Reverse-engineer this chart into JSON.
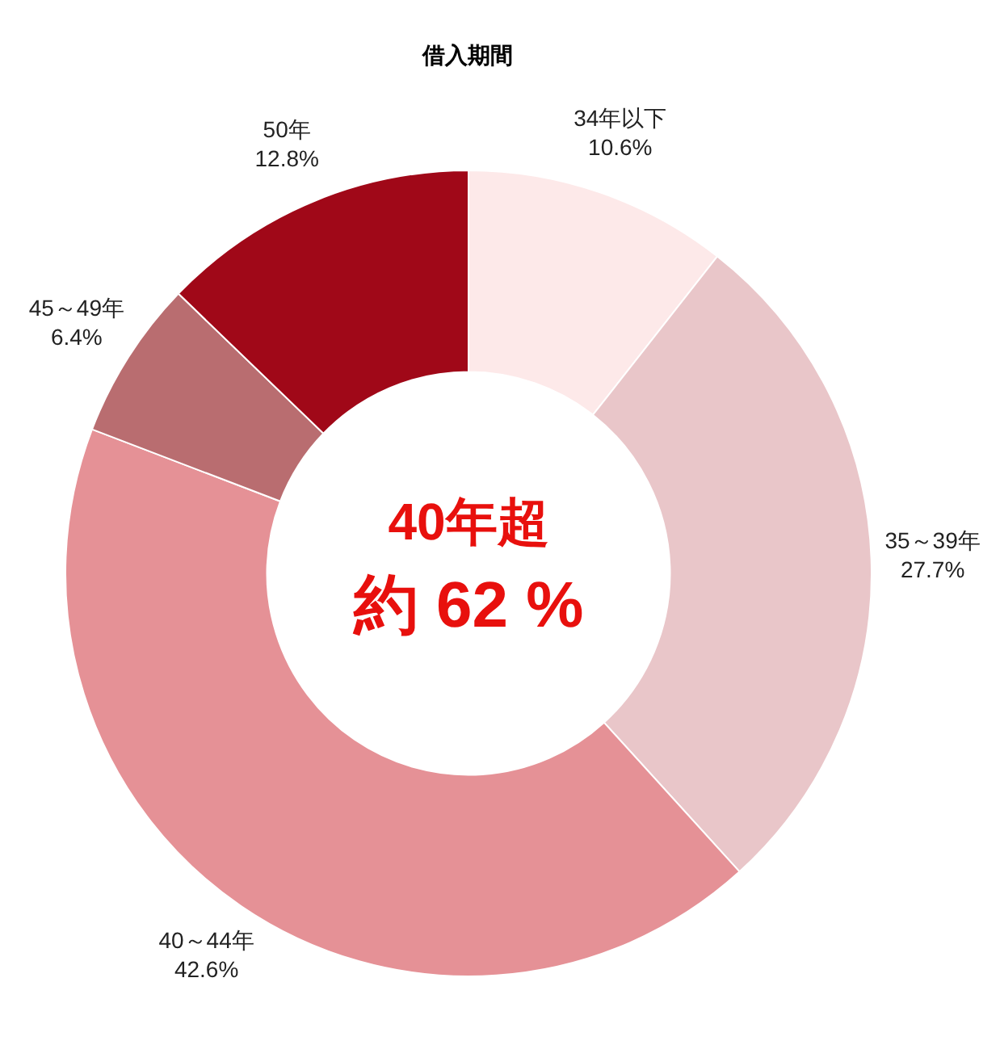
{
  "chart_data": {
    "type": "donut",
    "title": "借入期間",
    "categories": [
      "34年以下",
      "35～39年",
      "40～44年",
      "45～49年",
      "50年"
    ],
    "values": [
      10.6,
      27.7,
      42.6,
      6.4,
      12.8
    ],
    "value_labels": [
      "10.6%",
      "27.7%",
      "42.6%",
      "6.4%",
      "12.8%"
    ],
    "colors": [
      "#fde9e9",
      "#e9c6c9",
      "#e59196",
      "#b96d70",
      "#a00818"
    ],
    "annotations": [
      "40年超",
      "約 62 %"
    ],
    "legend": false
  }
}
